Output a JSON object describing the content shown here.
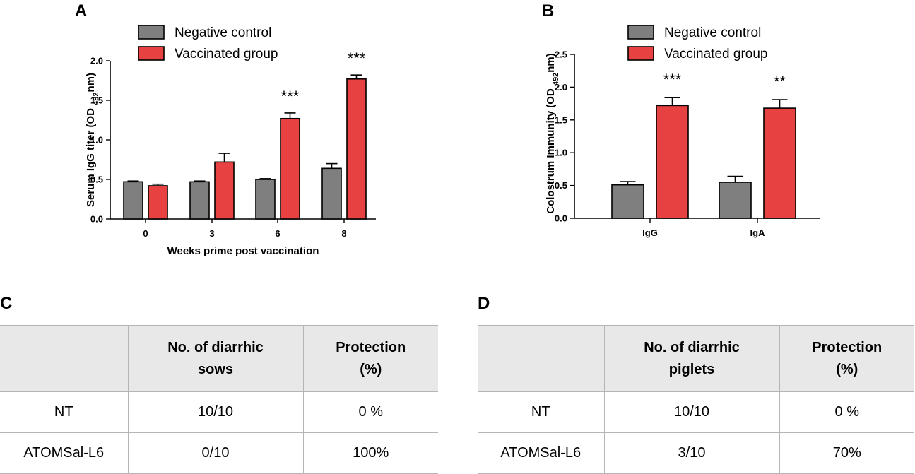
{
  "colors": {
    "negative": "#7f7f7f",
    "vaccinated": "#e84142",
    "axis": "#000000",
    "grid": "#b5b5b5"
  },
  "panels": {
    "a": "A",
    "b": "B",
    "c": "C",
    "d": "D"
  },
  "chart_data": [
    {
      "id": "A",
      "type": "bar",
      "title": "",
      "xlabel": "Weeks prime post vaccination",
      "ylabel_main": "Serum IgG titer (OD ",
      "ylabel_sub": "492",
      "ylabel_end": "nm)",
      "categories": [
        "0",
        "3",
        "6",
        "8"
      ],
      "ylim": [
        0,
        2.0
      ],
      "yticks": [
        "0.0",
        "0.5",
        "1.0",
        "1.5",
        "2.0"
      ],
      "ytick_values": [
        0,
        0.5,
        1.0,
        1.5,
        2.0
      ],
      "legend": [
        "Negative control",
        "Vaccinated group"
      ],
      "series": [
        {
          "name": "Negative control",
          "values": [
            0.47,
            0.47,
            0.5,
            0.64
          ],
          "errors": [
            0.01,
            0.01,
            0.01,
            0.06
          ]
        },
        {
          "name": "Vaccinated group",
          "values": [
            0.42,
            0.72,
            1.27,
            1.77
          ],
          "errors": [
            0.02,
            0.11,
            0.07,
            0.05
          ]
        }
      ],
      "significance": [
        "",
        "",
        "***",
        "***"
      ]
    },
    {
      "id": "B",
      "type": "bar",
      "title": "",
      "xlabel": "",
      "ylabel_main": "Colostrum Immunity  (OD ",
      "ylabel_sub": "492",
      "ylabel_end": "nm)",
      "categories": [
        "IgG",
        "IgA"
      ],
      "ylim": [
        0,
        2.5
      ],
      "yticks": [
        "0.0",
        "0.5",
        "1.0",
        "1.5",
        "2.0",
        "2.5"
      ],
      "ytick_values": [
        0,
        0.5,
        1.0,
        1.5,
        2.0,
        2.5
      ],
      "legend": [
        "Negative control",
        "Vaccinated group"
      ],
      "series": [
        {
          "name": "Negative control",
          "values": [
            0.51,
            0.55
          ],
          "errors": [
            0.05,
            0.09
          ]
        },
        {
          "name": "Vaccinated group",
          "values": [
            1.72,
            1.68
          ],
          "errors": [
            0.12,
            0.13
          ]
        }
      ],
      "significance": [
        "***",
        "**"
      ]
    }
  ],
  "table_c": {
    "header": {
      "col2_line1": "No. of diarrhic",
      "col2_line2": "sows",
      "col3_line1": "Protection",
      "col3_line2": "(%)"
    },
    "rows": [
      {
        "group": "NT",
        "count": "10/10",
        "protection": "0 %"
      },
      {
        "group": "ATOMSal-L6",
        "count": "0/10",
        "protection": "100%"
      }
    ]
  },
  "table_d": {
    "header": {
      "col2_line1": "No. of diarrhic",
      "col2_line2": "piglets",
      "col3_line1": "Protection",
      "col3_line2": "(%)"
    },
    "rows": [
      {
        "group": "NT",
        "count": "10/10",
        "protection": "0 %"
      },
      {
        "group": "ATOMSal-L6",
        "count": "3/10",
        "protection": "70%"
      }
    ]
  }
}
